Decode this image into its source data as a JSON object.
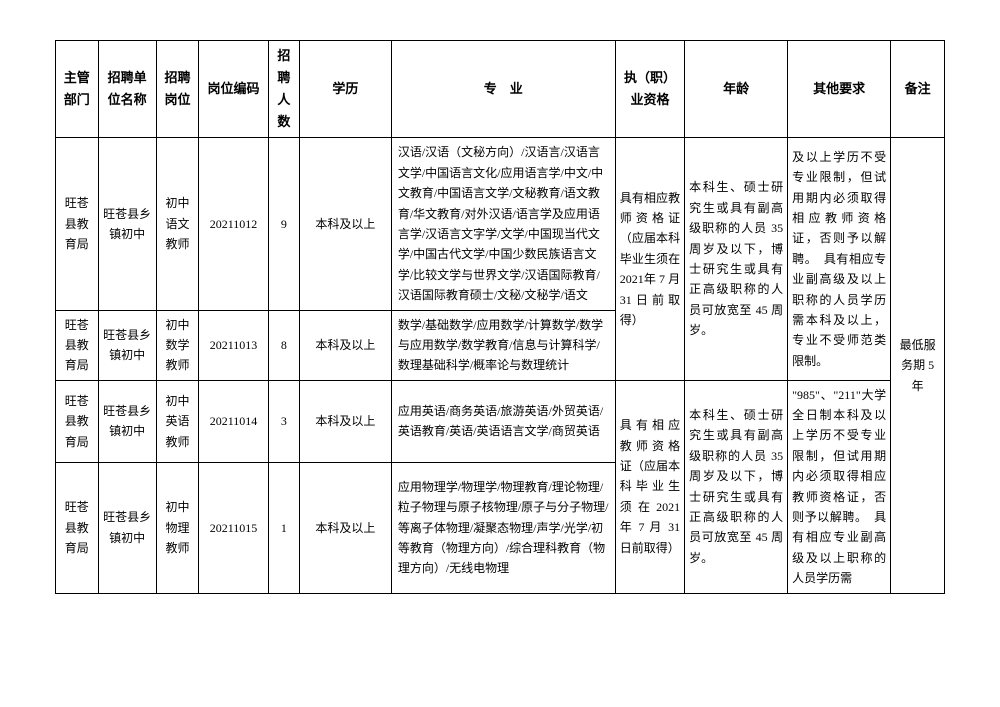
{
  "headers": {
    "dept": "主管部门",
    "unit": "招聘单位名称",
    "post": "招聘岗位",
    "code": "岗位编码",
    "count": "招聘人数",
    "edu": "学历",
    "major": "专　业",
    "qual": "执（职）业资格",
    "age": "年龄",
    "other": "其他要求",
    "remark": "备注"
  },
  "r1": {
    "dept": "旺苍县教育局",
    "unit": "旺苍县乡镇初中",
    "post": "初中语文教师",
    "code": "20211012",
    "count": "9",
    "edu": "本科及以上",
    "major": "汉语/汉语（文秘方向）/汉语言/汉语言文学/中国语言文化/应用语言学/中文/中文教育/中国语言文学/文秘教育/语文教育/华文教育/对外汉语/语言学及应用语言学/汉语言文字学/文学/中国现当代文学/中国古代文学/中国少数民族语言文学/比较文学与世界文学/汉语国际教育/汉语国际教育硕士/文秘/文秘学/语文"
  },
  "r2": {
    "dept": "旺苍县教育局",
    "unit": "旺苍县乡镇初中",
    "post": "初中数学教师",
    "code": "20211013",
    "count": "8",
    "edu": "本科及以上",
    "major": "数学/基础数学/应用数学/计算数学/数学与应用数学/数学教育/信息与计算科学/数理基础科学/概率论与数理统计"
  },
  "r3": {
    "dept": "旺苍县教育局",
    "unit": "旺苍县乡镇初中",
    "post": "初中英语教师",
    "code": "20211014",
    "count": "3",
    "edu": "本科及以上",
    "major": "应用英语/商务英语/旅游英语/外贸英语/英语教育/英语/英语语言文学/商贸英语"
  },
  "r4": {
    "dept": "旺苍县教育局",
    "unit": "旺苍县乡镇初中",
    "post": "初中物理教师",
    "code": "20211015",
    "count": "1",
    "edu": "本科及以上",
    "major": "应用物理学/物理学/物理教育/理论物理/粒子物理与原子核物理/原子与分子物理/等离子体物理/凝聚态物理/声学/光学/初等教育（物理方向）/综合理科教育（物理方向）/无线电物理"
  },
  "qual12": "具有相应教师资格证（应届本科毕业生须在 2021年 7 月 31日前取得）",
  "qual34": "具 有 相 应教 师 资 格证（应届本科 毕 业 生须 在 2021年 7 月 31日前取得）",
  "age12": "本科生、硕士研究生或具有副高级职称的人员 35 周岁及以下，博士研究生或具有正高级职称的人员可放宽至 45 周岁。",
  "age34": "本科生、硕士研究生或具有副高级职称的人员 35 周岁及以下，博士研究生或具有正高级职称的人员可放宽至 45 周岁。",
  "other12": "及以上学历不受专业限制，但试用期内必须取得相应教师资格证，否则予以解聘。　具有相应专业副高级及以上职称的人员学历需本科及以上，专业不受师范类限制。",
  "other34": "\"985\"、\"211\"大学全日制本科及以上学历不受专业限制，但试用期内必须取得相应教师资格证，否则予以解聘。　具有相应专业副高级及以上职称的人员学历需",
  "remark": "最低服务期 5 年"
}
